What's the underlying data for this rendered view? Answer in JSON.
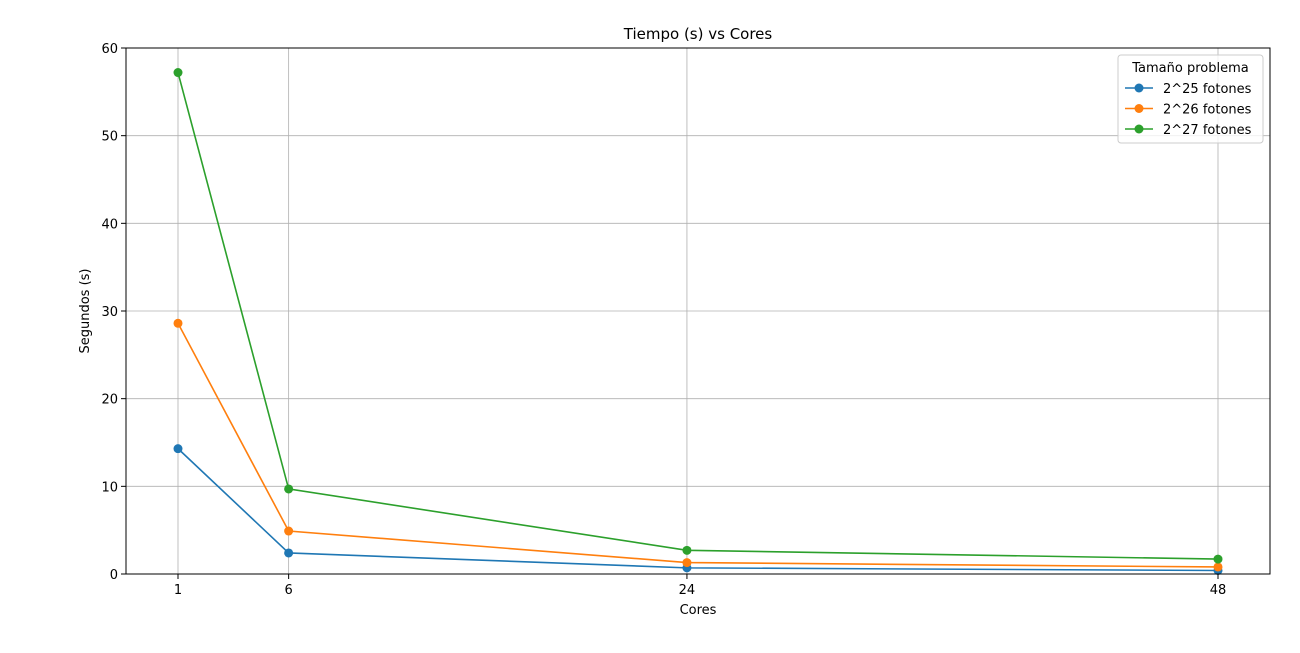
{
  "chart_data": {
    "type": "line",
    "title": "Tiempo (s) vs Cores",
    "xlabel": "Cores",
    "ylabel": "Segundos (s)",
    "x": [
      1,
      6,
      24,
      48
    ],
    "xticks": [
      "1",
      "6",
      "24",
      "48"
    ],
    "xlim": [
      -1.35,
      50.35
    ],
    "ylim": [
      0,
      60
    ],
    "yticks": [
      "0",
      "10",
      "20",
      "30",
      "40",
      "50",
      "60"
    ],
    "grid": true,
    "legend": {
      "title": "Tamaño problema",
      "placement": "top-right"
    },
    "series": [
      {
        "name": "2^25 fotones",
        "color": "#1f77b4",
        "values": [
          14.3,
          2.4,
          0.7,
          0.4
        ]
      },
      {
        "name": "2^26 fotones",
        "color": "#ff7f0e",
        "values": [
          28.6,
          4.9,
          1.3,
          0.8
        ]
      },
      {
        "name": "2^27 fotones",
        "color": "#2ca02c",
        "values": [
          57.2,
          9.7,
          2.7,
          1.7
        ]
      }
    ]
  }
}
